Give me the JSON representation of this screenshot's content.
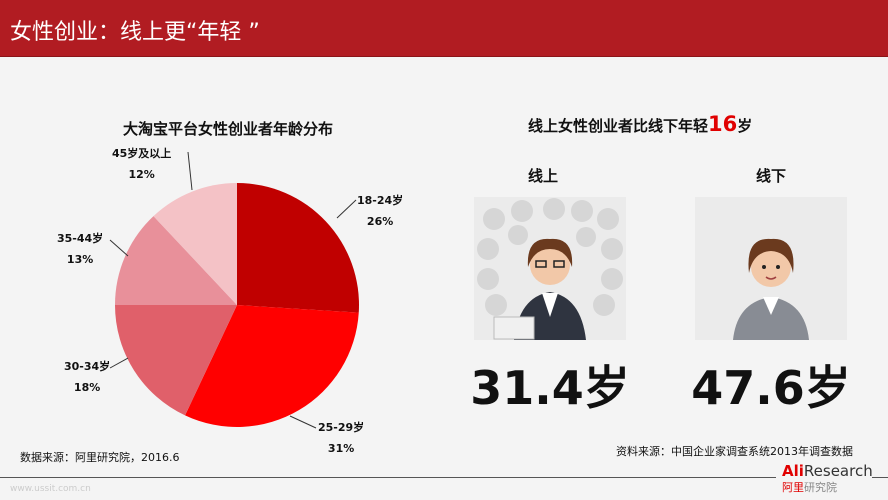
{
  "header": {
    "title": "女性创业：线上更“年轻 ”"
  },
  "left": {
    "source": "数据来源：阿里研究院，2016.6"
  },
  "right": {
    "title_prefix": "线上女性创业者比线下年轻",
    "title_highlight": "16",
    "title_suffix": "岁",
    "online": {
      "label": "线上",
      "age": "31.4岁"
    },
    "offline": {
      "label": "线下",
      "age": "47.6岁"
    },
    "source": "资料来源：中国企业家调查系统2013年调查数据"
  },
  "footer": {
    "watermark": "www.ussit.com.cn",
    "logo": "AliResearch 阿里研究院"
  },
  "colors": {
    "header": "#b11c22",
    "highlight": "#e00000"
  },
  "chart_data": {
    "type": "pie",
    "title": "大淘宝平台女性创业者年龄分布",
    "categories": [
      "18-24岁",
      "25-29岁",
      "30-34岁",
      "35-44岁",
      "45岁及以上"
    ],
    "values": [
      26,
      31,
      18,
      13,
      12
    ],
    "labels": [
      "26%",
      "31%",
      "18%",
      "13%",
      "12%"
    ],
    "colors": [
      "#c00000",
      "#ff0000",
      "#e0606a",
      "#e8909a",
      "#f4c2c6"
    ]
  }
}
